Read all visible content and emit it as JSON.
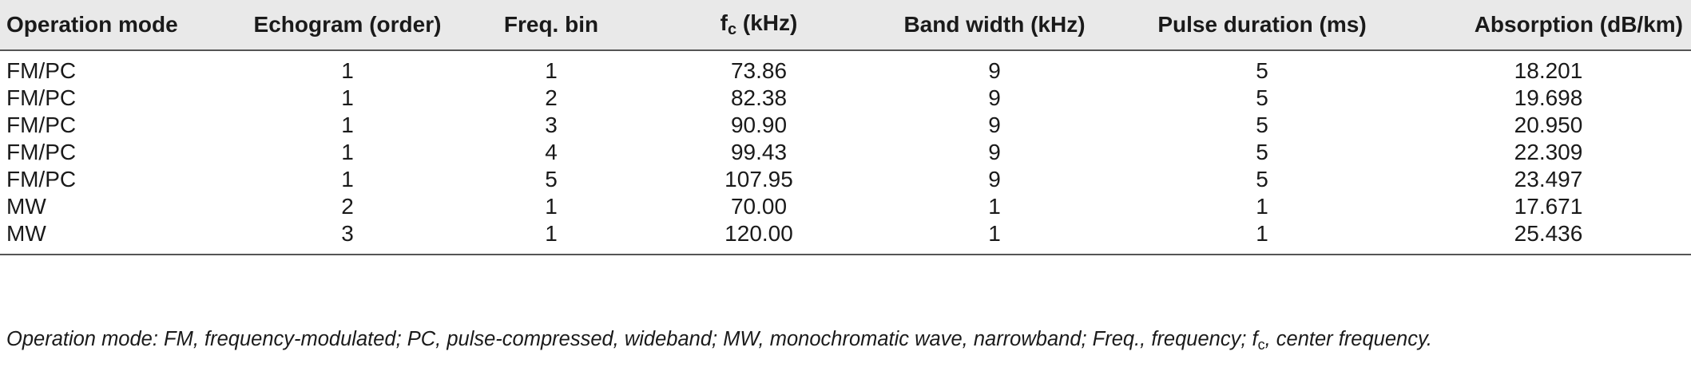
{
  "table": {
    "headers": [
      "Operation mode",
      "Echogram (order)",
      "Freq. bin",
      "f",
      "Band width (kHz)",
      "Pulse duration (ms)",
      "Absorption (dB/km)"
    ],
    "fc_header_sub": "c",
    "fc_header_suffix": " (kHz)",
    "rows": [
      [
        "FM/PC",
        "1",
        "1",
        "73.86",
        "9",
        "5",
        "18.201"
      ],
      [
        "FM/PC",
        "1",
        "2",
        "82.38",
        "9",
        "5",
        "19.698"
      ],
      [
        "FM/PC",
        "1",
        "3",
        "90.90",
        "9",
        "5",
        "20.950"
      ],
      [
        "FM/PC",
        "1",
        "4",
        "99.43",
        "9",
        "5",
        "22.309"
      ],
      [
        "FM/PC",
        "1",
        "5",
        "107.95",
        "9",
        "5",
        "23.497"
      ],
      [
        "MW",
        "2",
        "1",
        "70.00",
        "1",
        "1",
        "17.671"
      ],
      [
        "MW",
        "3",
        "1",
        "120.00",
        "1",
        "1",
        "25.436"
      ]
    ]
  },
  "footnote": {
    "text_before": "Operation mode: FM, frequency-modulated; PC, pulse-compressed, wideband; MW, monochromatic wave, narrowband; Freq., frequency; f",
    "sub": "c",
    "text_after": ", center frequency."
  }
}
